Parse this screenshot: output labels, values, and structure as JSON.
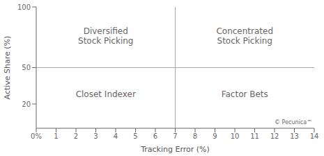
{
  "chart_data": {
    "type": "quadrant",
    "xlabel": "Tracking Error (%)",
    "ylabel": "Active Share (%)",
    "xlim": [
      0,
      14
    ],
    "ylim": [
      0,
      100
    ],
    "xticks": [
      {
        "value": 0,
        "label": "0%"
      },
      1,
      2,
      3,
      4,
      5,
      6,
      7,
      8,
      9,
      10,
      11,
      12,
      13,
      14
    ],
    "yticks": [
      20,
      50,
      100
    ],
    "grid": false,
    "dividers": {
      "x": 7,
      "y": 50
    },
    "annotations": [
      {
        "text": "Diversified\nStock Picking",
        "x": 3.5,
        "y": 76
      },
      {
        "text": "Concentrated\nStock Picking",
        "x": 10.5,
        "y": 76
      },
      {
        "text": "Closet Indexer",
        "x": 3.5,
        "y": 28
      },
      {
        "text": "Factor Bets",
        "x": 10.5,
        "y": 28
      }
    ],
    "watermark": {
      "text": "© Pecunica™",
      "x": 13.9,
      "y": 2.5
    }
  }
}
